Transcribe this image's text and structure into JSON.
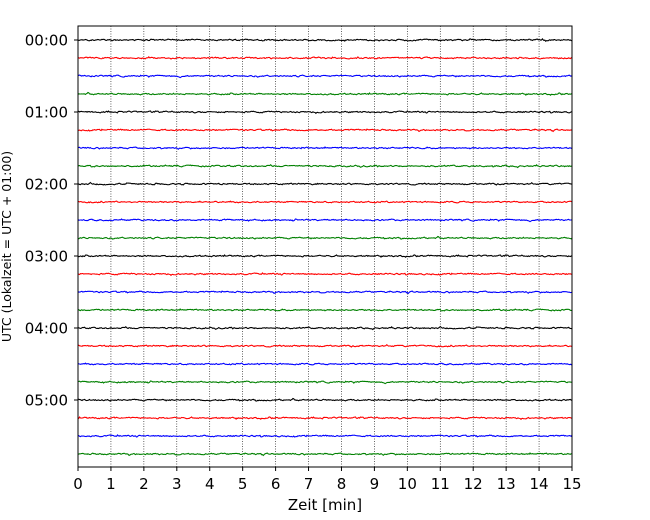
{
  "chart_data": {
    "type": "line",
    "title": "",
    "xlabel": "Zeit  [min]",
    "ylabel": "UTC (Lokalzeit = UTC + 01:00)",
    "xlim": [
      0,
      15
    ],
    "x_ticks": [
      0,
      1,
      2,
      3,
      4,
      5,
      6,
      7,
      8,
      9,
      10,
      11,
      12,
      13,
      14,
      15
    ],
    "y_tick_labels": [
      "00:00",
      "01:00",
      "02:00",
      "03:00",
      "04:00",
      "05:00"
    ],
    "rows_per_hour": 4,
    "row_minutes": 15,
    "grid": "vertical dotted lines at each minute",
    "legend": "none",
    "trace_colors": [
      "#000000",
      "#ff0000",
      "#0000ff",
      "#008000"
    ],
    "series": [
      {
        "start": "00:00",
        "color": "#000000"
      },
      {
        "start": "00:15",
        "color": "#ff0000"
      },
      {
        "start": "00:30",
        "color": "#0000ff"
      },
      {
        "start": "00:45",
        "color": "#008000"
      },
      {
        "start": "01:00",
        "color": "#000000"
      },
      {
        "start": "01:15",
        "color": "#ff0000"
      },
      {
        "start": "01:30",
        "color": "#0000ff"
      },
      {
        "start": "01:45",
        "color": "#008000"
      },
      {
        "start": "02:00",
        "color": "#000000"
      },
      {
        "start": "02:15",
        "color": "#ff0000"
      },
      {
        "start": "02:30",
        "color": "#0000ff"
      },
      {
        "start": "02:45",
        "color": "#008000"
      },
      {
        "start": "03:00",
        "color": "#000000"
      },
      {
        "start": "03:15",
        "color": "#ff0000"
      },
      {
        "start": "03:30",
        "color": "#0000ff"
      },
      {
        "start": "03:45",
        "color": "#008000"
      },
      {
        "start": "04:00",
        "color": "#000000"
      },
      {
        "start": "04:15",
        "color": "#ff0000"
      },
      {
        "start": "04:30",
        "color": "#0000ff"
      },
      {
        "start": "04:45",
        "color": "#008000"
      },
      {
        "start": "05:00",
        "color": "#000000"
      },
      {
        "start": "05:15",
        "color": "#ff0000"
      },
      {
        "start": "05:30",
        "color": "#0000ff"
      },
      {
        "start": "05:45",
        "color": "#008000"
      }
    ]
  }
}
